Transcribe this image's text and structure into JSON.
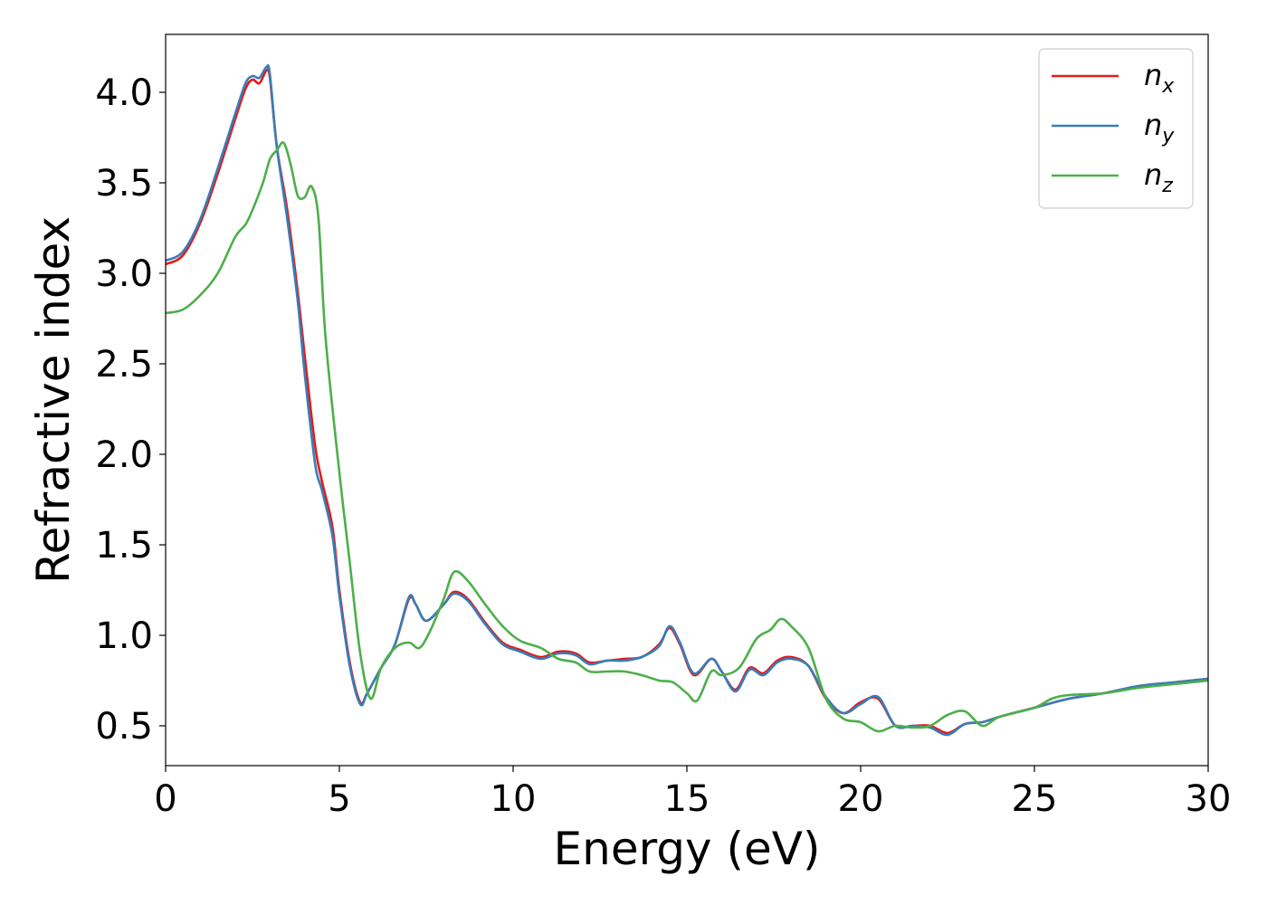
{
  "chart_data": {
    "type": "line",
    "xlabel": "Energy (eV)",
    "ylabel": "Refractive index",
    "xlim": [
      0,
      30
    ],
    "ylim": [
      0.28,
      4.32
    ],
    "xticks": [
      0,
      5,
      10,
      15,
      20,
      25,
      30
    ],
    "xtick_labels": [
      "0",
      "5",
      "10",
      "15",
      "20",
      "25",
      "30"
    ],
    "yticks": [
      0.5,
      1.0,
      1.5,
      2.0,
      2.5,
      3.0,
      3.5,
      4.0
    ],
    "ytick_labels": [
      "0.5",
      "1.0",
      "1.5",
      "2.0",
      "2.5",
      "3.0",
      "3.5",
      "4.0"
    ],
    "grid": false,
    "legend_position": "top-right",
    "series": [
      {
        "name": "n_x",
        "label_base": "n",
        "label_sub": "x",
        "color": "#e41a1c",
        "x": [
          0,
          0.5,
          1.0,
          1.5,
          2.0,
          2.3,
          2.5,
          2.7,
          2.9,
          3.0,
          3.2,
          3.5,
          3.8,
          4.0,
          4.3,
          4.5,
          4.8,
          5.0,
          5.3,
          5.6,
          5.8,
          6.2,
          6.6,
          7.0,
          7.2,
          7.5,
          8.0,
          8.3,
          8.7,
          9.2,
          9.7,
          10.2,
          10.8,
          11.3,
          11.8,
          12.2,
          12.7,
          13.2,
          13.7,
          14.2,
          14.5,
          14.8,
          15.2,
          15.7,
          16.0,
          16.4,
          16.8,
          17.2,
          17.6,
          18.0,
          18.5,
          19.0,
          19.5,
          20.0,
          20.5,
          21.0,
          21.5,
          22.0,
          22.5,
          23.0,
          23.5,
          24.0,
          25.0,
          26.0,
          27.0,
          28.0,
          29.0,
          30.0
        ],
        "values": [
          3.05,
          3.1,
          3.28,
          3.55,
          3.85,
          4.02,
          4.07,
          4.05,
          4.12,
          4.08,
          3.7,
          3.35,
          2.9,
          2.55,
          2.05,
          1.85,
          1.6,
          1.25,
          0.85,
          0.63,
          0.68,
          0.82,
          0.95,
          1.2,
          1.17,
          1.08,
          1.17,
          1.24,
          1.2,
          1.07,
          0.96,
          0.92,
          0.88,
          0.91,
          0.9,
          0.85,
          0.86,
          0.87,
          0.88,
          0.95,
          1.04,
          0.95,
          0.78,
          0.87,
          0.8,
          0.7,
          0.82,
          0.79,
          0.86,
          0.88,
          0.83,
          0.65,
          0.57,
          0.63,
          0.65,
          0.5,
          0.5,
          0.5,
          0.46,
          0.51,
          0.52,
          0.55,
          0.6,
          0.65,
          0.68,
          0.72,
          0.74,
          0.76
        ]
      },
      {
        "name": "n_y",
        "label_base": "n",
        "label_sub": "y",
        "color": "#377eb8",
        "x": [
          0,
          0.5,
          1.0,
          1.5,
          2.0,
          2.3,
          2.5,
          2.7,
          2.9,
          3.0,
          3.2,
          3.5,
          3.8,
          4.0,
          4.3,
          4.5,
          4.8,
          5.0,
          5.3,
          5.6,
          5.8,
          6.2,
          6.6,
          7.0,
          7.2,
          7.5,
          8.0,
          8.3,
          8.7,
          9.2,
          9.7,
          10.2,
          10.8,
          11.3,
          11.8,
          12.2,
          12.7,
          13.2,
          13.7,
          14.2,
          14.5,
          14.8,
          15.2,
          15.7,
          16.0,
          16.4,
          16.8,
          17.2,
          17.6,
          18.0,
          18.5,
          19.0,
          19.5,
          20.0,
          20.5,
          21.0,
          21.5,
          22.0,
          22.5,
          23.0,
          23.5,
          24.0,
          25.0,
          26.0,
          27.0,
          28.0,
          29.0,
          30.0
        ],
        "values": [
          3.07,
          3.12,
          3.3,
          3.58,
          3.88,
          4.05,
          4.09,
          4.08,
          4.14,
          4.1,
          3.7,
          3.3,
          2.85,
          2.45,
          1.95,
          1.8,
          1.55,
          1.22,
          0.83,
          0.62,
          0.68,
          0.82,
          0.95,
          1.21,
          1.17,
          1.08,
          1.17,
          1.23,
          1.19,
          1.06,
          0.95,
          0.91,
          0.87,
          0.9,
          0.89,
          0.84,
          0.86,
          0.86,
          0.88,
          0.94,
          1.05,
          0.96,
          0.79,
          0.87,
          0.8,
          0.69,
          0.81,
          0.78,
          0.85,
          0.87,
          0.83,
          0.66,
          0.57,
          0.62,
          0.66,
          0.5,
          0.5,
          0.49,
          0.45,
          0.51,
          0.52,
          0.55,
          0.6,
          0.65,
          0.68,
          0.72,
          0.74,
          0.76
        ]
      },
      {
        "name": "n_z",
        "label_base": "n",
        "label_sub": "z",
        "color": "#4daf4a",
        "x": [
          0,
          0.5,
          1.0,
          1.5,
          2.0,
          2.3,
          2.5,
          2.8,
          3.0,
          3.2,
          3.4,
          3.6,
          3.8,
          4.0,
          4.2,
          4.4,
          4.6,
          5.0,
          5.3,
          5.6,
          5.9,
          6.2,
          6.6,
          7.0,
          7.3,
          7.6,
          8.0,
          8.3,
          8.7,
          9.2,
          9.7,
          10.2,
          10.8,
          11.3,
          11.8,
          12.2,
          12.7,
          13.2,
          13.7,
          14.2,
          14.6,
          15.0,
          15.3,
          15.7,
          16.0,
          16.5,
          17.0,
          17.4,
          17.7,
          18.0,
          18.5,
          19.0,
          19.5,
          20.0,
          20.5,
          21.0,
          21.5,
          22.0,
          22.5,
          23.0,
          23.5,
          24.0,
          25.0,
          25.5,
          26.0,
          27.0,
          28.0,
          29.0,
          30.0
        ],
        "values": [
          2.78,
          2.8,
          2.88,
          3.0,
          3.2,
          3.27,
          3.35,
          3.5,
          3.63,
          3.68,
          3.72,
          3.6,
          3.43,
          3.42,
          3.48,
          3.3,
          2.65,
          1.9,
          1.4,
          0.9,
          0.65,
          0.82,
          0.93,
          0.96,
          0.93,
          1.02,
          1.2,
          1.35,
          1.3,
          1.17,
          1.05,
          0.97,
          0.93,
          0.87,
          0.85,
          0.8,
          0.8,
          0.8,
          0.78,
          0.75,
          0.74,
          0.68,
          0.64,
          0.8,
          0.78,
          0.82,
          0.98,
          1.03,
          1.09,
          1.05,
          0.93,
          0.65,
          0.54,
          0.52,
          0.47,
          0.5,
          0.49,
          0.5,
          0.56,
          0.58,
          0.5,
          0.55,
          0.6,
          0.65,
          0.67,
          0.68,
          0.71,
          0.73,
          0.75
        ]
      }
    ]
  }
}
